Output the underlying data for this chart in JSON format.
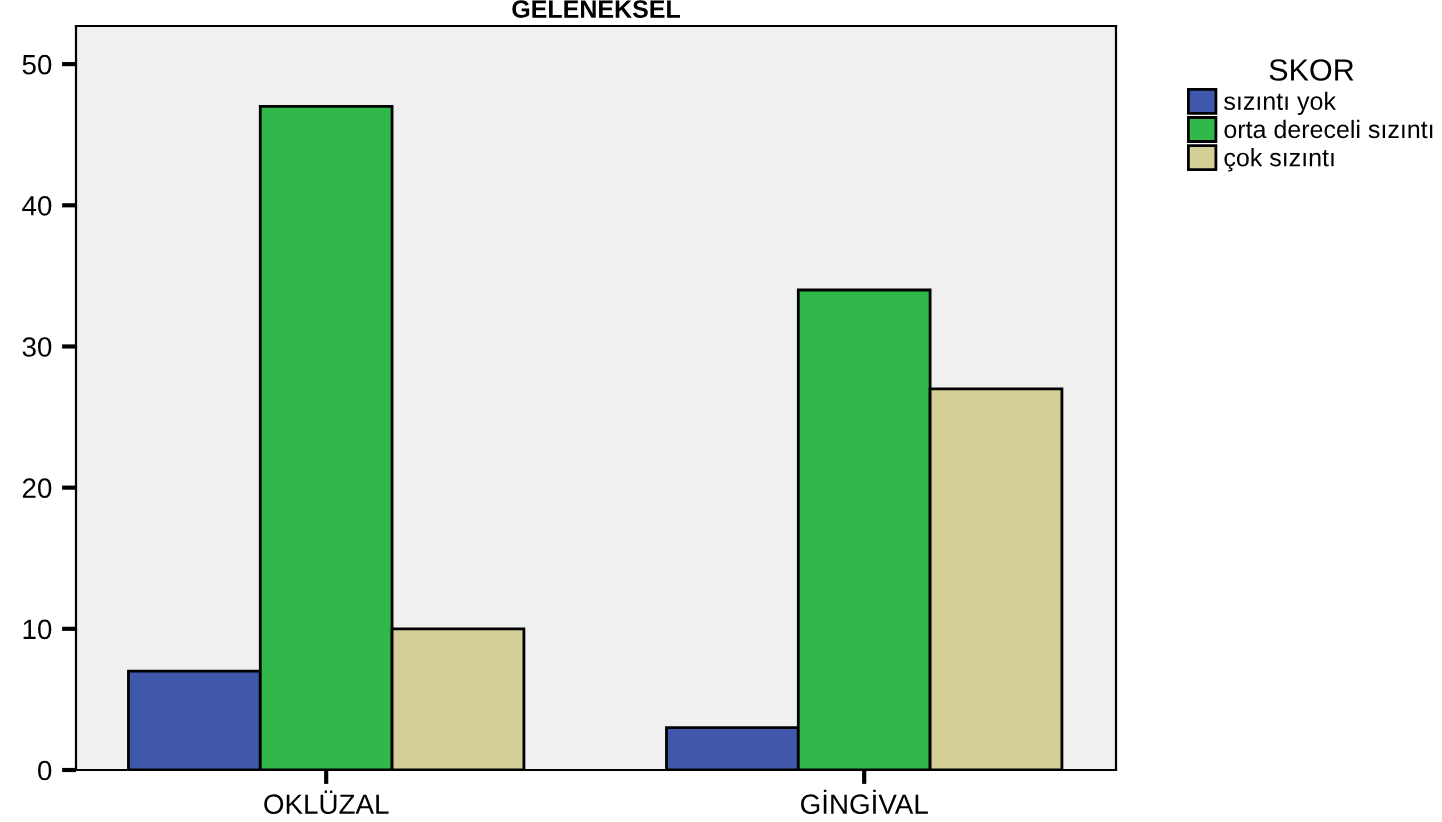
{
  "chart_data": {
    "type": "bar",
    "title": "GELENEKSEL",
    "legend_title": "SKOR",
    "categories": [
      "OKLÜZAL",
      "GİNGİVAL"
    ],
    "series": [
      {
        "name": "sızıntı yok",
        "color": "#3f58ab",
        "values": [
          7,
          3
        ]
      },
      {
        "name": "orta dereceli sızıntı",
        "color": "#30b84a",
        "values": [
          47,
          34
        ]
      },
      {
        "name": "çok sızıntı",
        "color": "#d3cf97",
        "values": [
          10,
          27
        ]
      }
    ],
    "ylim": [
      0,
      52.7
    ],
    "yticks": [
      0,
      10,
      20,
      30,
      40,
      50
    ],
    "grid": false,
    "legend": "right"
  }
}
